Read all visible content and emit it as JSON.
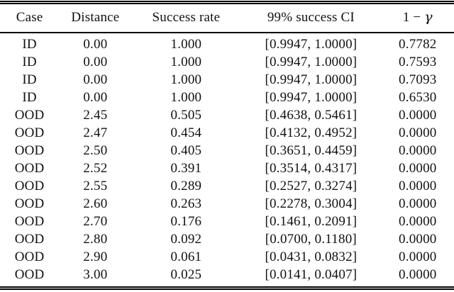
{
  "table": {
    "header": {
      "case": "Case",
      "distance": "Distance",
      "success_rate": "Success rate",
      "ci": "99% success CI",
      "gamma_prefix": "1 − ",
      "gamma_symbol": "γ"
    },
    "rows": [
      {
        "case": "ID",
        "distance": "0.00",
        "success_rate": "1.000",
        "ci": "[0.9947, 1.0000]",
        "gamma": "0.7782"
      },
      {
        "case": "ID",
        "distance": "0.00",
        "success_rate": "1.000",
        "ci": "[0.9947, 1.0000]",
        "gamma": "0.7593"
      },
      {
        "case": "ID",
        "distance": "0.00",
        "success_rate": "1.000",
        "ci": "[0.9947, 1.0000]",
        "gamma": "0.7093"
      },
      {
        "case": "ID",
        "distance": "0.00",
        "success_rate": "1.000",
        "ci": "[0.9947, 1.0000]",
        "gamma": "0.6530"
      },
      {
        "case": "OOD",
        "distance": "2.45",
        "success_rate": "0.505",
        "ci": "[0.4638, 0.5461]",
        "gamma": "0.0000"
      },
      {
        "case": "OOD",
        "distance": "2.47",
        "success_rate": "0.454",
        "ci": "[0.4132, 0.4952]",
        "gamma": "0.0000"
      },
      {
        "case": "OOD",
        "distance": "2.50",
        "success_rate": "0.405",
        "ci": "[0.3651, 0.4459]",
        "gamma": "0.0000"
      },
      {
        "case": "OOD",
        "distance": "2.52",
        "success_rate": "0.391",
        "ci": "[0.3514, 0.4317]",
        "gamma": "0.0000"
      },
      {
        "case": "OOD",
        "distance": "2.55",
        "success_rate": "0.289",
        "ci": "[0.2527, 0.3274]",
        "gamma": "0.0000"
      },
      {
        "case": "OOD",
        "distance": "2.60",
        "success_rate": "0.263",
        "ci": "[0.2278, 0.3004]",
        "gamma": "0.0000"
      },
      {
        "case": "OOD",
        "distance": "2.70",
        "success_rate": "0.176",
        "ci": "[0.1461, 0.2091]",
        "gamma": "0.0000"
      },
      {
        "case": "OOD",
        "distance": "2.80",
        "success_rate": "0.092",
        "ci": "[0.0700, 0.1180]",
        "gamma": "0.0000"
      },
      {
        "case": "OOD",
        "distance": "2.90",
        "success_rate": "0.061",
        "ci": "[0.0431, 0.0832]",
        "gamma": "0.0000"
      },
      {
        "case": "OOD",
        "distance": "3.00",
        "success_rate": "0.025",
        "ci": "[0.0141, 0.0407]",
        "gamma": "0.0000"
      }
    ]
  }
}
